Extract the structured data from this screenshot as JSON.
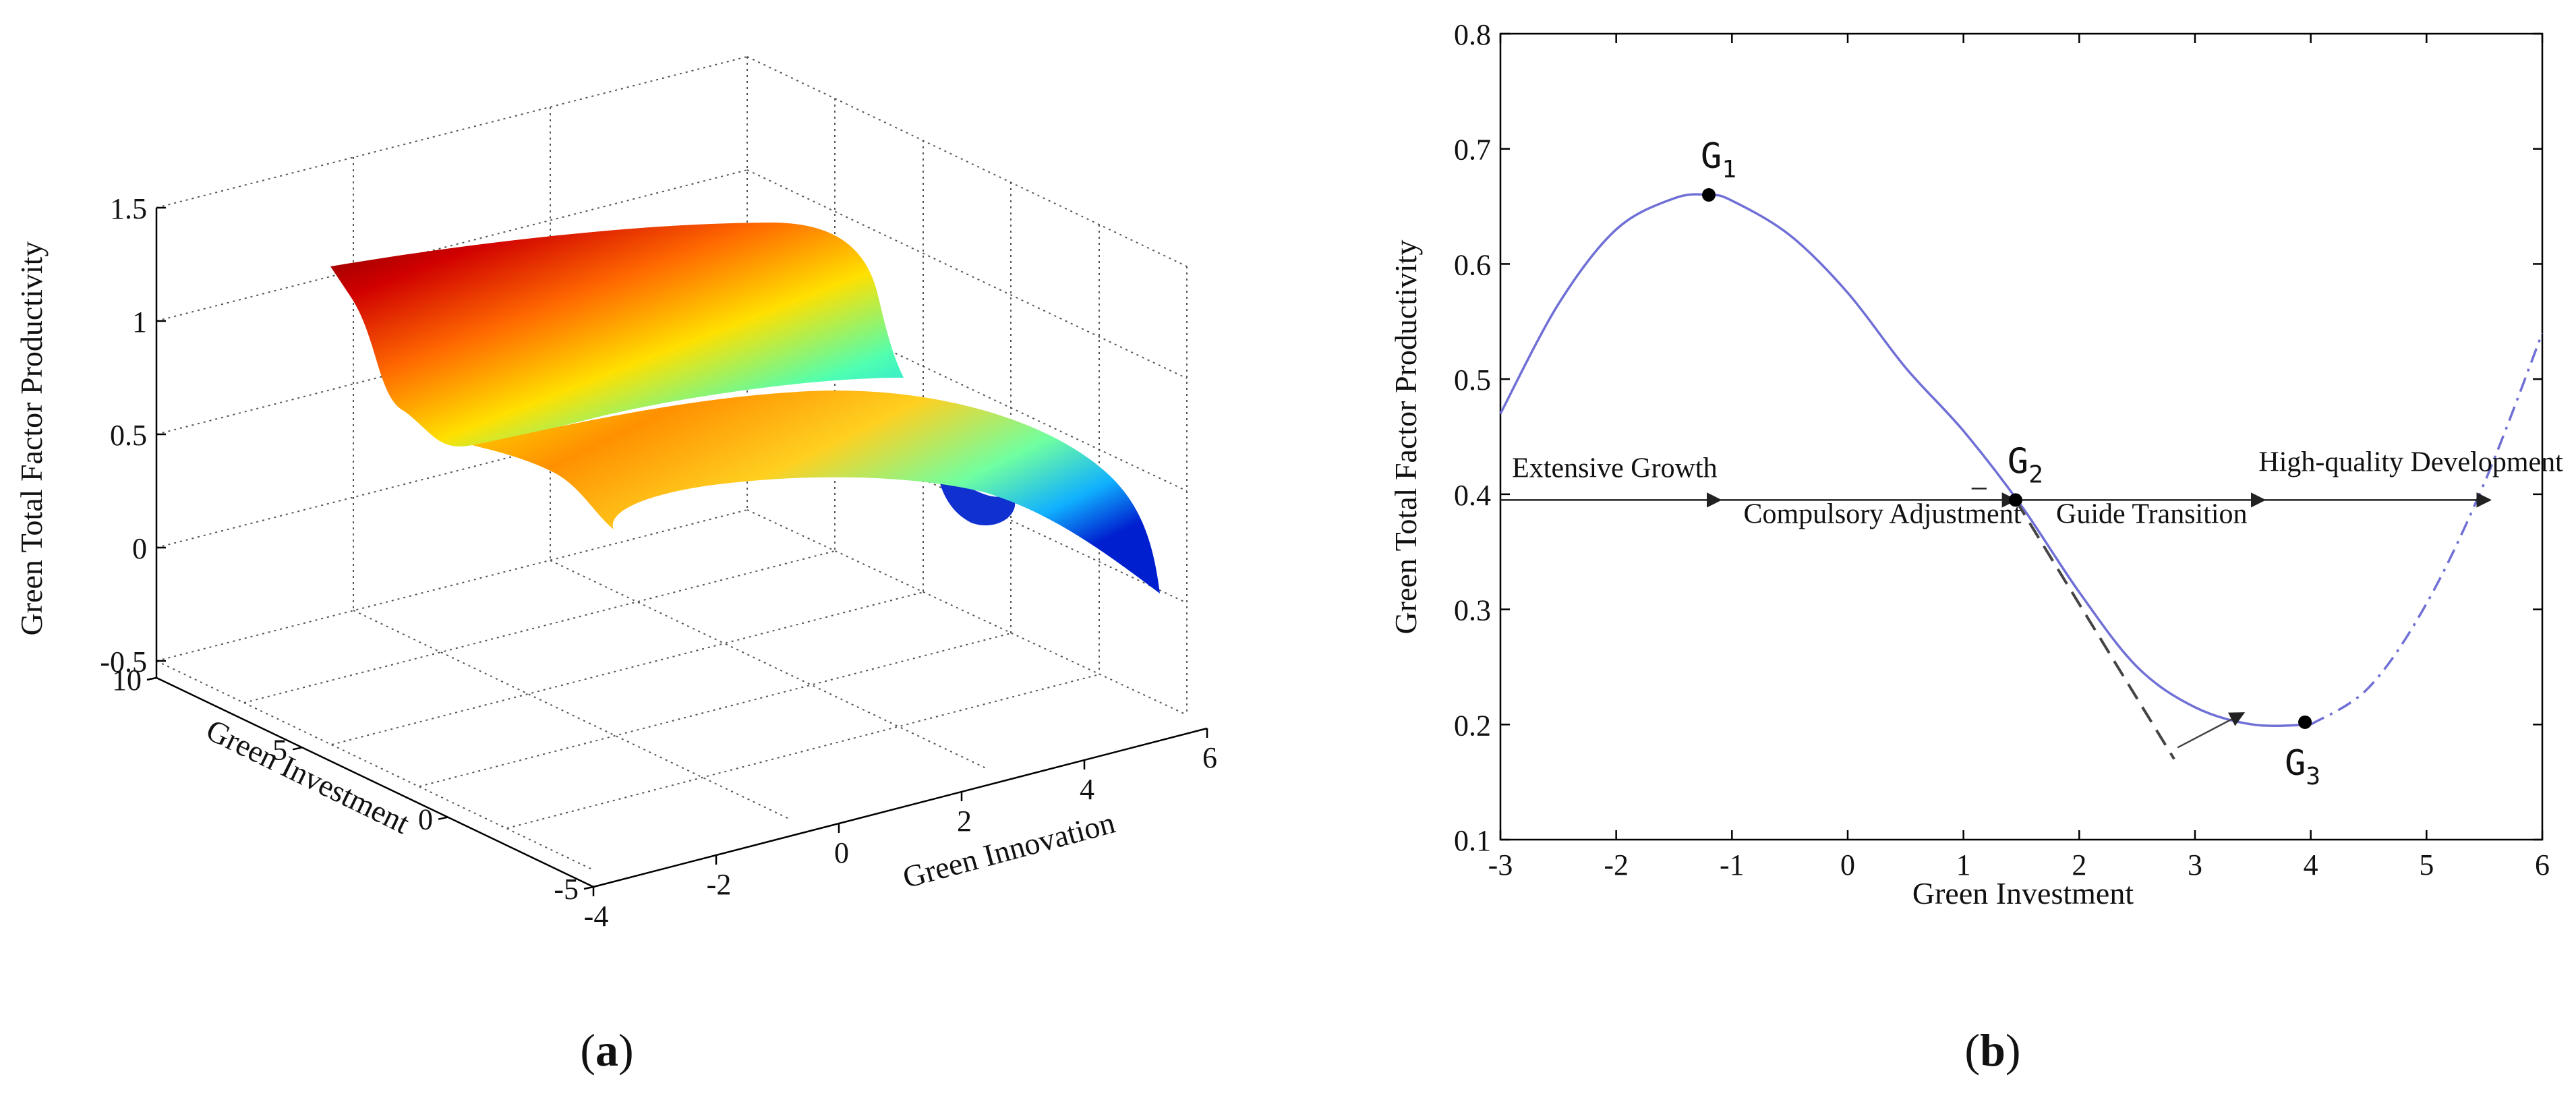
{
  "panels": [
    {
      "label": "(a)",
      "letter": "a"
    },
    {
      "label": "(b)",
      "letter": "b"
    }
  ],
  "chart_data": [
    {
      "type": "surface",
      "panel": "a",
      "zlabel": "Green Total Factor Productivity",
      "xlabel": "Green Innovation",
      "ylabel": "Green Investment",
      "x_ticks": [
        -4,
        -2,
        0,
        2,
        4,
        6
      ],
      "y_ticks": [
        -5,
        0,
        5,
        10
      ],
      "z_ticks": [
        -0.5,
        0,
        0.5,
        1,
        1.5
      ],
      "xlim": [
        -4,
        6
      ],
      "ylim": [
        -5,
        10
      ],
      "zlim": [
        -0.5,
        1.5
      ],
      "grid": true,
      "colormap": "jet"
    },
    {
      "type": "line",
      "panel": "b",
      "xlabel": "Green Investment",
      "ylabel": "Green Total Factor Productivity",
      "xlim": [
        -3,
        6
      ],
      "ylim": [
        0.1,
        0.8
      ],
      "x_ticks": [
        -3,
        -2,
        -1,
        0,
        1,
        2,
        3,
        4,
        5,
        6
      ],
      "y_ticks": [
        0.1,
        0.2,
        0.3,
        0.4,
        0.5,
        0.6,
        0.7,
        0.8
      ],
      "curve": {
        "color": "#6f6fd6",
        "x": [
          -3,
          -2.5,
          -2,
          -1.5,
          -1.2,
          -1,
          -0.5,
          0,
          0.5,
          1,
          1.5,
          2,
          2.5,
          3,
          3.5,
          4
        ],
        "y": [
          0.47,
          0.565,
          0.63,
          0.657,
          0.66,
          0.655,
          0.625,
          0.575,
          0.51,
          0.455,
          0.39,
          0.315,
          0.25,
          0.215,
          0.2,
          0.2
        ]
      },
      "curve_dashdot": {
        "color": "#6f6fd6",
        "x": [
          4,
          4.5,
          5,
          5.5,
          6
        ],
        "y": [
          0.2,
          0.232,
          0.305,
          0.41,
          0.54
        ]
      },
      "tangent_line": {
        "x": [
          1.45,
          2.82
        ],
        "y": [
          0.395,
          0.17
        ]
      },
      "tangent_arrow": {
        "from": [
          2.85,
          0.18
        ],
        "to": [
          3.42,
          0.21
        ]
      },
      "points": [
        {
          "name": "G",
          "sub": "1",
          "x": -1.2,
          "y": 0.66
        },
        {
          "name": "G",
          "sub": "2",
          "x": 1.45,
          "y": 0.395
        },
        {
          "name": "G",
          "sub": "3",
          "x": 3.95,
          "y": 0.202
        }
      ],
      "arrow_line": {
        "y": 0.395,
        "x_start": -3,
        "x_end": 5.55,
        "arrowheads_at": [
          -1.1,
          1.45,
          3.6,
          5.55
        ]
      },
      "annotations": [
        {
          "text": "Extensive Growth",
          "x": -2.9,
          "y": 0.415
        },
        {
          "text": "Compulsory Adjustment",
          "x": -0.9,
          "y": 0.375
        },
        {
          "text": "Guide Transition",
          "x": 1.8,
          "y": 0.375
        },
        {
          "text": "High-quality Development",
          "x": 3.55,
          "y": 0.42
        }
      ]
    }
  ]
}
